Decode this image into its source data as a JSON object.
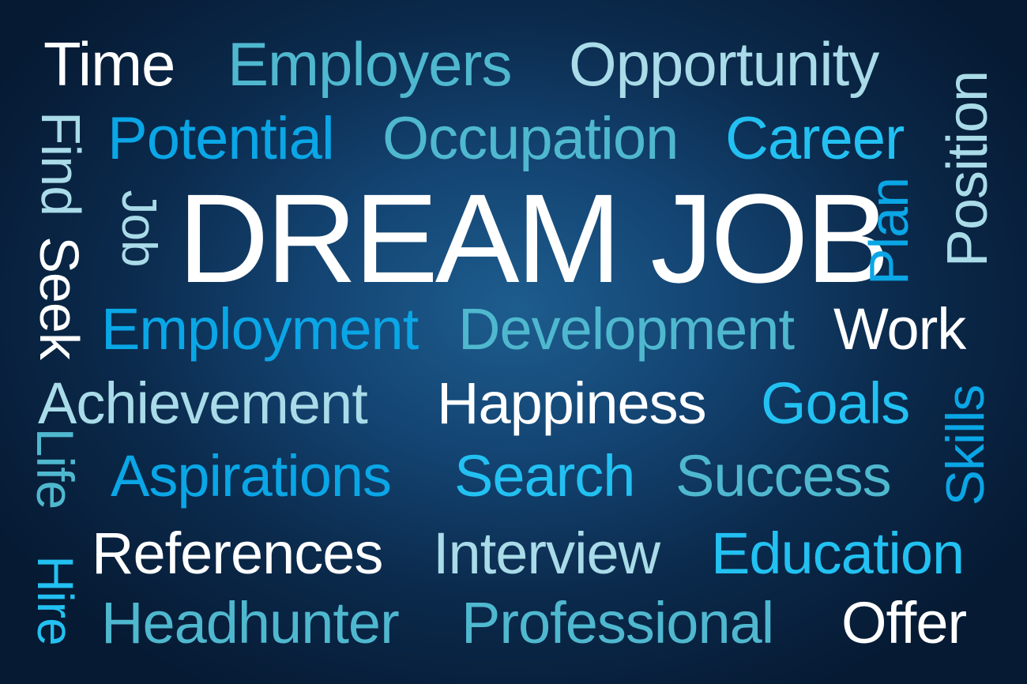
{
  "headline": "DREAM JOB",
  "words": {
    "time": "Time",
    "employers": "Employers",
    "opportunity": "Opportunity",
    "potential": "Potential",
    "occupation": "Occupation",
    "career": "Career",
    "employment": "Employment",
    "development": "Development",
    "work": "Work",
    "achievement": "Achievement",
    "happiness": "Happiness",
    "goals": "Goals",
    "aspirations": "Aspirations",
    "search": "Search",
    "success": "Success",
    "references": "References",
    "interview": "Interview",
    "education": "Education",
    "headhunter": "Headhunter",
    "professional": "Professional",
    "offer": "Offer",
    "find": "Find",
    "seek": "Seek",
    "job": "Job",
    "life": "Life",
    "hire": "Hire",
    "plan": "Plan",
    "position": "Position",
    "skills": "Skills"
  },
  "colors": {
    "background_center": "#1d5d8e",
    "background_edge": "#061a33",
    "white": "#ffffff",
    "teal": "#4fb8cf",
    "pale_blue": "#a9dbe8",
    "blue": "#0aa6e6",
    "sky_blue": "#22c1f2"
  }
}
